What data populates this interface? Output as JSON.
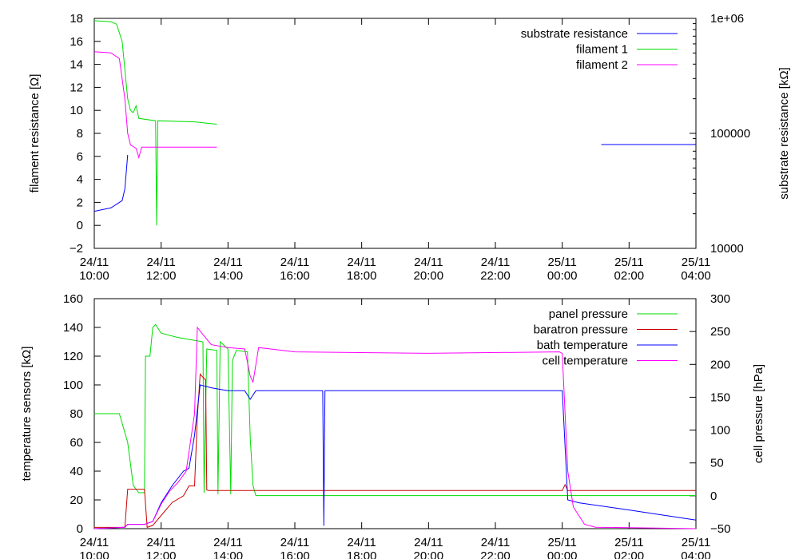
{
  "chart_data": [
    {
      "type": "line",
      "x_ticks": [
        "24/11 10:00",
        "24/11 12:00",
        "24/11 14:00",
        "24/11 16:00",
        "24/11 18:00",
        "24/11 20:00",
        "24/11 22:00",
        "25/11 00:00",
        "25/11 02:00",
        "25/11 04:00"
      ],
      "xlim": [
        "24/11 10:00",
        "25/11 04:00"
      ],
      "ylabel": "filament resistance [Ω]",
      "ylim": [
        -2,
        18
      ],
      "y_ticks": [
        "18",
        "16",
        "14",
        "12",
        "10",
        "8",
        "6",
        "4",
        "2",
        "0",
        "−2"
      ],
      "y2label": "substrate resistance [kΩ]",
      "y2lim": [
        10000,
        1000000
      ],
      "y2_scale": "log",
      "y2_ticks": [
        "1e+06",
        "100000",
        "10000"
      ],
      "legend_position": "top-right",
      "grid": false,
      "series": [
        {
          "name": "substrate resistance",
          "color": "#0000ff",
          "axis": "y2",
          "segments": [
            [
              [
                "24/11 10:00",
                21000
              ],
              [
                "24/11 10:30",
                22500
              ],
              [
                "24/11 10:50",
                26000
              ],
              [
                "24/11 10:55",
                33000
              ],
              [
                "24/11 11:00",
                65000
              ]
            ],
            [
              [
                "25/11 01:10",
                80000
              ],
              [
                "25/11 04:00",
                80000
              ]
            ]
          ]
        },
        {
          "name": "filament 1",
          "color": "#00dd00",
          "axis": "y",
          "points": [
            [
              "24/11 10:00",
              17.8
            ],
            [
              "24/11 10:30",
              17.7
            ],
            [
              "24/11 10:40",
              17.5
            ],
            [
              "24/11 10:50",
              16.0
            ],
            [
              "24/11 11:00",
              11.0
            ],
            [
              "24/11 11:05",
              10.0
            ],
            [
              "24/11 11:10",
              9.8
            ],
            [
              "24/11 11:15",
              10.4
            ],
            [
              "24/11 11:20",
              9.3
            ],
            [
              "24/11 11:50",
              9.1
            ],
            [
              "24/11 11:52",
              0.0
            ],
            [
              "24/11 11:54",
              9.1
            ],
            [
              "24/11 13:00",
              9.0
            ],
            [
              "24/11 13:40",
              8.8
            ]
          ]
        },
        {
          "name": "filament 2",
          "color": "#ff00ff",
          "axis": "y",
          "points": [
            [
              "24/11 10:00",
              15.1
            ],
            [
              "24/11 10:30",
              15.0
            ],
            [
              "24/11 10:45",
              14.5
            ],
            [
              "24/11 10:55",
              11.0
            ],
            [
              "24/11 11:00",
              8.0
            ],
            [
              "24/11 11:05",
              7.0
            ],
            [
              "24/11 11:15",
              6.7
            ],
            [
              "24/11 11:20",
              5.9
            ],
            [
              "24/11 11:25",
              6.8
            ],
            [
              "24/11 13:40",
              6.8
            ]
          ]
        }
      ]
    },
    {
      "type": "line",
      "x_ticks": [
        "24/11 10:00",
        "24/11 12:00",
        "24/11 14:00",
        "24/11 16:00",
        "24/11 18:00",
        "24/11 20:00",
        "24/11 22:00",
        "25/11 00:00",
        "25/11 02:00",
        "25/11 04:00"
      ],
      "xlim": [
        "24/11 10:00",
        "25/11 04:00"
      ],
      "ylabel": "temperature sensors [kΩ]",
      "ylim": [
        0,
        160
      ],
      "y_ticks": [
        "160",
        "140",
        "120",
        "100",
        "80",
        "60",
        "40",
        "20",
        "0"
      ],
      "y2label": "cell pressure [hPa]",
      "y2lim": [
        -50,
        300
      ],
      "y2_ticks": [
        "300",
        "250",
        "200",
        "150",
        "100",
        "50",
        "0",
        "−50"
      ],
      "legend_position": "top-right",
      "grid": false,
      "series": [
        {
          "name": "panel pressure",
          "color": "#00dd00",
          "axis": "y",
          "points": [
            [
              "24/11 10:00",
              80
            ],
            [
              "24/11 10:45",
              80
            ],
            [
              "24/11 11:00",
              60
            ],
            [
              "24/11 11:10",
              30
            ],
            [
              "24/11 11:20",
              25
            ],
            [
              "24/11 11:30",
              25
            ],
            [
              "24/11 11:32",
              120
            ],
            [
              "24/11 11:40",
              120
            ],
            [
              "24/11 11:45",
              140
            ],
            [
              "24/11 11:50",
              142
            ],
            [
              "24/11 12:00",
              136
            ],
            [
              "24/11 12:30",
              133
            ],
            [
              "24/11 13:00",
              131
            ],
            [
              "24/11 13:15",
              130
            ],
            [
              "24/11 13:17",
              25
            ],
            [
              "24/11 13:22",
              125
            ],
            [
              "24/11 13:40",
              124
            ],
            [
              "24/11 13:42",
              24
            ],
            [
              "24/11 13:46",
              130
            ],
            [
              "24/11 14:00",
              125
            ],
            [
              "24/11 14:05",
              24
            ],
            [
              "24/11 14:08",
              117
            ],
            [
              "24/11 14:15",
              124
            ],
            [
              "24/11 14:35",
              123
            ],
            [
              "24/11 14:40",
              63
            ],
            [
              "24/11 14:45",
              30
            ],
            [
              "24/11 14:50",
              23
            ],
            [
              "25/11 04:00",
              23
            ]
          ]
        },
        {
          "name": "baratron pressure",
          "color": "#cc0000",
          "axis": "y2",
          "points": [
            [
              "24/11 10:00",
              -48
            ],
            [
              "24/11 10:55",
              -48
            ],
            [
              "24/11 11:00",
              10
            ],
            [
              "24/11 11:05",
              10
            ],
            [
              "24/11 11:30",
              10
            ],
            [
              "24/11 11:35",
              -48
            ],
            [
              "24/11 11:45",
              -45
            ],
            [
              "24/11 12:00",
              -30
            ],
            [
              "24/11 12:20",
              -10
            ],
            [
              "24/11 12:40",
              0
            ],
            [
              "24/11 12:50",
              15
            ],
            [
              "24/11 13:00",
              15
            ],
            [
              "24/11 13:05",
              120
            ],
            [
              "24/11 13:10",
              185
            ],
            [
              "24/11 13:20",
              176
            ],
            [
              "24/11 13:22",
              9
            ],
            [
              "24/11 13:25",
              8
            ],
            [
              "24/11 13:40",
              8
            ],
            [
              "24/11 14:00",
              8
            ],
            [
              "24/11 14:20",
              8
            ],
            [
              "24/11 14:50",
              8
            ],
            [
              "25/11 00:00",
              8
            ],
            [
              "25/11 00:05",
              17
            ],
            [
              "25/11 00:10",
              8
            ],
            [
              "25/11 04:00",
              8
            ]
          ]
        },
        {
          "name": "bath temperature",
          "color": "#0000ff",
          "axis": "y",
          "points": [
            [
              "24/11 10:00",
              0
            ],
            [
              "24/11 10:55",
              1
            ],
            [
              "24/11 11:00",
              3
            ],
            [
              "24/11 11:30",
              3
            ],
            [
              "24/11 11:45",
              5
            ],
            [
              "24/11 12:00",
              18
            ],
            [
              "24/11 12:20",
              30
            ],
            [
              "24/11 12:40",
              40
            ],
            [
              "24/11 12:50",
              42
            ],
            [
              "24/11 13:00",
              65
            ],
            [
              "24/11 13:10",
              100
            ],
            [
              "24/11 13:30",
              98
            ],
            [
              "24/11 14:00",
              96
            ],
            [
              "24/11 14:30",
              96
            ],
            [
              "24/11 14:40",
              90
            ],
            [
              "24/11 14:50",
              96
            ],
            [
              "24/11 16:50",
              96
            ],
            [
              "24/11 16:52",
              2
            ],
            [
              "24/11 16:54",
              96
            ],
            [
              "24/11 23:55",
              96
            ],
            [
              "25/11 00:00",
              96
            ],
            [
              "25/11 00:10",
              20
            ],
            [
              "25/11 00:30",
              18
            ],
            [
              "25/11 02:00",
              13
            ],
            [
              "25/11 04:00",
              6
            ]
          ]
        },
        {
          "name": "cell temperature",
          "color": "#ff00ff",
          "axis": "y",
          "points": [
            [
              "24/11 10:00",
              0
            ],
            [
              "24/11 10:55",
              1
            ],
            [
              "24/11 11:00",
              3
            ],
            [
              "24/11 11:30",
              3
            ],
            [
              "24/11 11:45",
              5
            ],
            [
              "24/11 12:00",
              17
            ],
            [
              "24/11 12:15",
              26
            ],
            [
              "24/11 12:30",
              32
            ],
            [
              "24/11 12:45",
              40
            ],
            [
              "24/11 13:00",
              80
            ],
            [
              "24/11 13:05",
              140
            ],
            [
              "24/11 13:15",
              135
            ],
            [
              "24/11 13:30",
              128
            ],
            [
              "24/11 14:00",
              126
            ],
            [
              "24/11 14:30",
              125
            ],
            [
              "24/11 14:40",
              106
            ],
            [
              "24/11 14:45",
              102
            ],
            [
              "24/11 14:55",
              126
            ],
            [
              "24/11 16:00",
              123
            ],
            [
              "24/11 20:00",
              122
            ],
            [
              "24/11 23:55",
              123
            ],
            [
              "25/11 00:00",
              122
            ],
            [
              "25/11 00:10",
              40
            ],
            [
              "25/11 00:20",
              15
            ],
            [
              "25/11 00:40",
              3
            ],
            [
              "25/11 01:00",
              1
            ],
            [
              "25/11 04:00",
              0
            ]
          ]
        }
      ]
    }
  ]
}
